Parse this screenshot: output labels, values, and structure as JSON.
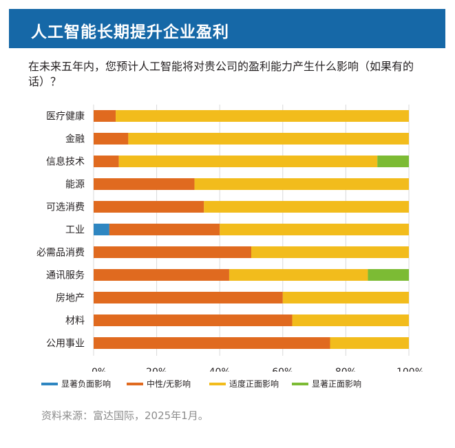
{
  "header": {
    "title": "人工智能长期提升企业盈利"
  },
  "question": "在未来五年内，您预计人工智能将对贵公司的盈利能力产生什么影响（如果有的话）？",
  "source": "资料来源：富达国际，2025年1月。",
  "colors": {
    "banner": "#1668a7",
    "significant_negative": "#2e86c1",
    "neutral": "#e06a1f",
    "moderate_positive": "#f2bc1c",
    "significant_positive": "#7cbb34",
    "grid": "#d9d9d9"
  },
  "chart_data": {
    "type": "bar",
    "orientation": "horizontal",
    "stacked": true,
    "categories": [
      "医疗健康",
      "金融",
      "信息技术",
      "能源",
      "可选消费",
      "工业",
      "必需品消费",
      "通讯服务",
      "房地产",
      "材料",
      "公用事业"
    ],
    "series": [
      {
        "name": "显著负面影响",
        "color": "#2e86c1",
        "values": [
          0,
          0,
          0,
          0,
          0,
          5,
          0,
          0,
          0,
          0,
          0
        ]
      },
      {
        "name": "中性/无影响",
        "color": "#e06a1f",
        "values": [
          7,
          11,
          8,
          32,
          35,
          35,
          50,
          43,
          60,
          63,
          75
        ]
      },
      {
        "name": "适度正面影响",
        "color": "#f2bc1c",
        "values": [
          93,
          89,
          82,
          68,
          65,
          60,
          50,
          44,
          40,
          37,
          25
        ]
      },
      {
        "name": "显著正面影响",
        "color": "#7cbb34",
        "values": [
          0,
          0,
          10,
          0,
          0,
          0,
          0,
          13,
          0,
          0,
          0
        ]
      }
    ],
    "xticks": [
      "0%",
      "20%",
      "40%",
      "60%",
      "80%",
      "100%"
    ],
    "xlim": [
      0,
      100
    ],
    "grid": true,
    "legend_position": "bottom"
  }
}
